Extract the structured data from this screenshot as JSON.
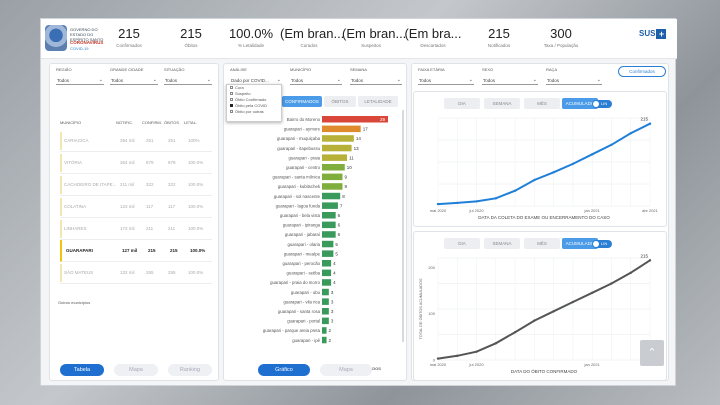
{
  "header": {
    "logo_text": "GOVERNO DO ESTADO DO ESPÍRITO SANTO",
    "logo_sub": "CORONAVÍRUS",
    "logo_sub2": "COVID-19",
    "kpis": [
      {
        "value": "215",
        "label": "Confirmados"
      },
      {
        "value": "215",
        "label": "Óbitos"
      },
      {
        "value": "100.0%",
        "label": "% Letalidade"
      },
      {
        "value": "(Em bran...",
        "label": "Curados"
      },
      {
        "value": "(Em bran...",
        "label": "Suspeitos"
      },
      {
        "value": "(Em bra...",
        "label": "Descartados"
      },
      {
        "value": "215",
        "label": "Notificados"
      },
      {
        "value": "300",
        "label": "Taxa / População"
      }
    ],
    "sus_label": "SUS"
  },
  "left_panel": {
    "filters": [
      {
        "label": "REGIÃO",
        "value": "Todos"
      },
      {
        "label": "GRANDE CIDADE",
        "value": "Todos"
      },
      {
        "label": "SITUAÇÃO",
        "value": "Todos"
      }
    ],
    "columns": [
      "MUNICÍPIO",
      "NOTIFIC.",
      "CONFIRM.",
      "ÓBITOS",
      "LETAL."
    ],
    "rows": [
      [
        "CARIACICA",
        "394 mil",
        "251",
        "251",
        "100%"
      ],
      [
        "VITÓRIA",
        "364 mil",
        "879",
        "879",
        "100.0%"
      ],
      [
        "CACHOEIRO DE ITAPE...",
        "211 mil",
        "322",
        "322",
        "100.0%"
      ],
      [
        "COLATINA",
        "123 mil",
        "117",
        "117",
        "100.0%"
      ],
      [
        "LINHARES",
        "173 mil",
        "211",
        "211",
        "100.0%"
      ],
      [
        "GUARAPARI",
        "127 mil",
        "215",
        "215",
        "100.0%"
      ],
      [
        "SÃO MATEUS",
        "132 mil",
        "255",
        "255",
        "100.0%"
      ]
    ],
    "footnote": "Outros municípios",
    "buttons": [
      "Tabela",
      "Mapa",
      "Ranking"
    ]
  },
  "middle_panel": {
    "filters": [
      {
        "label": "ANÁLISE",
        "value": "Dado por COVID..."
      },
      {
        "label": "MUNICÍPIO",
        "value": "Todos"
      },
      {
        "label": "SEMANA",
        "value": "Todos"
      }
    ],
    "dropdown_items": [
      {
        "label": "Cura",
        "checked": false
      },
      {
        "label": "Suspeito",
        "checked": false
      },
      {
        "label": "Óbito Confirmado",
        "checked": false
      },
      {
        "label": "Óbito pela COVID",
        "checked": true
      },
      {
        "label": "Óbito por outras",
        "checked": false
      }
    ],
    "tabs": [
      "CONFIRMADOS",
      "ÓBITOS",
      "LETALIDADE"
    ],
    "bars": [
      {
        "label": "Bairro do Moreno",
        "value": 29
      },
      {
        "label": "guarapari - aymore",
        "value": 17
      },
      {
        "label": "guarapari - muquiçaba",
        "value": 14
      },
      {
        "label": "guarapari - itapebussu",
        "value": 13
      },
      {
        "label": "guarapari - praia",
        "value": 11
      },
      {
        "label": "guarapari - centro",
        "value": 10
      },
      {
        "label": "guarapari - santa mônica",
        "value": 9
      },
      {
        "label": "guarapari - kubitschek",
        "value": 9
      },
      {
        "label": "guarapari - sol nascente",
        "value": 8
      },
      {
        "label": "guarapari - lagoa funda",
        "value": 7
      },
      {
        "label": "guarapari - bela vista",
        "value": 6
      },
      {
        "label": "guarapari - ipiranga",
        "value": 6
      },
      {
        "label": "guarapari - jabaraí",
        "value": 6
      },
      {
        "label": "guarapari - olaria",
        "value": 5
      },
      {
        "label": "guarapari - meaípe",
        "value": 5
      },
      {
        "label": "guarapari - perocão",
        "value": 4
      },
      {
        "label": "guarapari - setiba",
        "value": 4
      },
      {
        "label": "guarapari - praia do morro",
        "value": 4
      },
      {
        "label": "guarapari - ubu",
        "value": 3
      },
      {
        "label": "guarapari - vila rica",
        "value": 3
      },
      {
        "label": "guarapari - santa rosa",
        "value": 3
      },
      {
        "label": "guarapari - portal",
        "value": 3
      },
      {
        "label": "guarapari - parque areia preta",
        "value": 2
      },
      {
        "label": "guarapari - ipê",
        "value": 2
      }
    ],
    "xlabel": "TOTAL DE CONFIRMADOS",
    "buttons": [
      "Gráfico",
      "Mapa"
    ]
  },
  "right_panel": {
    "filters": [
      {
        "label": "FAIXA ETÁRIA",
        "value": "Todos"
      },
      {
        "label": "SEXO",
        "value": "Todos"
      },
      {
        "label": "RAÇA",
        "value": "Todos"
      }
    ],
    "new_button": "Confirmados",
    "tabs": [
      "DIA",
      "SEMANA",
      "MÊS",
      "ACUMULADO"
    ],
    "toggle_label": "LIN"
  },
  "chart_data": [
    {
      "type": "line",
      "x": [
        "mai 2020",
        "jun 2020",
        "jul 2020",
        "ago 2020",
        "set 2020",
        "out 2020",
        "nov 2020",
        "dez 2020",
        "jan 2021",
        "fev 2021",
        "mar 2021",
        "abr 2021"
      ],
      "series": [
        {
          "values": [
            5,
            8,
            12,
            20,
            40,
            68,
            88,
            110,
            135,
            160,
            190,
            215
          ]
        }
      ],
      "xlabel": "DATA DA COLETA DO EXAME OU ENCERRAMENTO DO CASO",
      "ylabel": "",
      "ylim": [
        0,
        230
      ],
      "ticks_x": [
        "mai 2020",
        "jul 2020",
        "jan 2021",
        "abr 2021"
      ],
      "color": "#1f7fd9",
      "end_label": "215"
    },
    {
      "type": "line",
      "x": [
        "mai 2020",
        "jun 2020",
        "jul 2020",
        "ago 2020",
        "set 2020",
        "out 2020",
        "nov 2020",
        "dez 2020",
        "jan 2021",
        "fev 2021",
        "mar 2021",
        "abr 2021"
      ],
      "series": [
        {
          "values": [
            3,
            9,
            18,
            36,
            60,
            85,
            105,
            125,
            145,
            165,
            188,
            215
          ]
        }
      ],
      "xlabel": "DATA DO ÓBITO CONFIRMADO",
      "ylabel": "TOTAL DE ÓBITOS ACUMULADOS",
      "ylim": [
        0,
        220
      ],
      "ticks_x": [
        "mai 2020",
        "jul 2020",
        "jan 2021",
        "abr 2021"
      ],
      "ticks_y": [
        "0",
        "100",
        "200"
      ],
      "color": "#555555",
      "end_label": "215"
    }
  ]
}
